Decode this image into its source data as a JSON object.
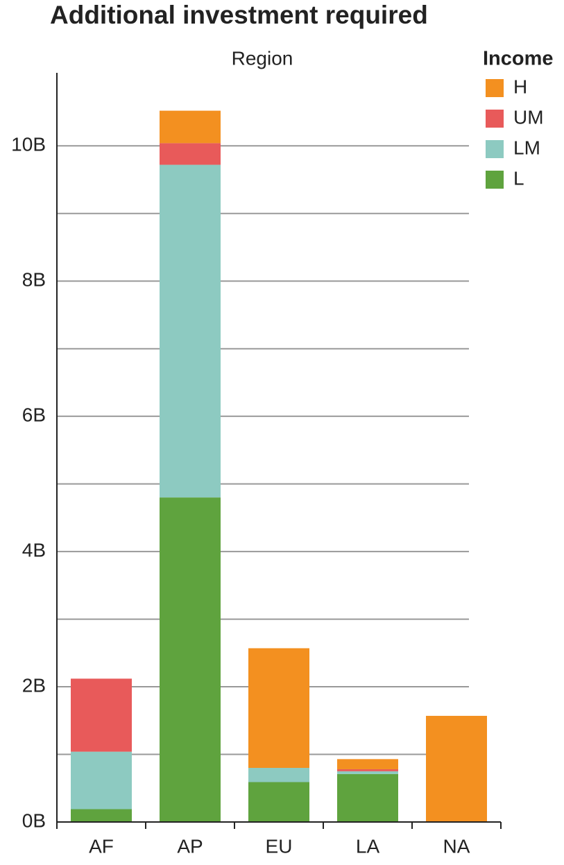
{
  "chart_data": {
    "type": "stacked_bar",
    "title": "Additional investment required",
    "x_label": "Region",
    "legend_title": "Income",
    "categories": [
      "AF",
      "AP",
      "EU",
      "LA",
      "NA"
    ],
    "series": [
      {
        "name": "L",
        "color": "#5fa33e",
        "values": [
          0.19,
          4.8,
          0.59,
          0.71,
          0
        ]
      },
      {
        "name": "LM",
        "color": "#8dcac1",
        "values": [
          0.85,
          4.92,
          0.21,
          0.04,
          0
        ]
      },
      {
        "name": "UM",
        "color": "#e85a5a",
        "values": [
          1.08,
          0.32,
          0,
          0.03,
          0
        ]
      },
      {
        "name": "H",
        "color": "#f39020",
        "values": [
          0,
          0.48,
          1.77,
          0.15,
          1.57
        ]
      }
    ],
    "ylim": [
      0,
      11.08
    ],
    "yticks": [
      {
        "value": 0,
        "label": "0B"
      },
      {
        "value": 2,
        "label": "2B"
      },
      {
        "value": 4,
        "label": "4B"
      },
      {
        "value": 6,
        "label": "6B"
      },
      {
        "value": 8,
        "label": "8B"
      },
      {
        "value": 10,
        "label": "10B"
      }
    ],
    "minor_yticks": [
      1,
      3,
      5,
      7,
      9
    ],
    "grid": true,
    "legend": "top-right"
  }
}
